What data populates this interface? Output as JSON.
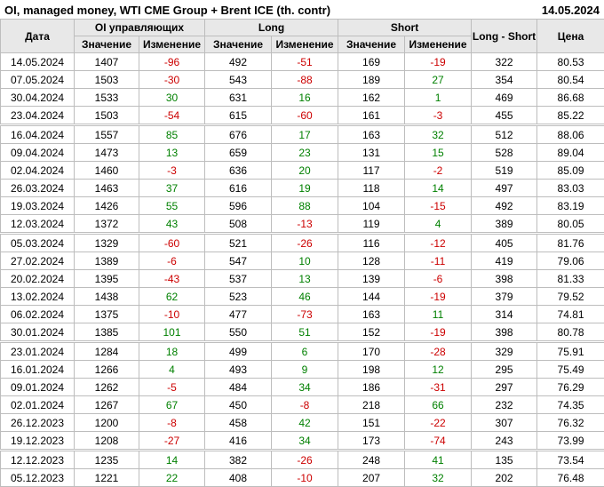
{
  "title": "OI, managed money, WTI CME Group + Brent ICE (th. contr)",
  "report_date": "14.05.2024",
  "colors": {
    "positive_change": "#008000",
    "negative_change": "#cc0000",
    "header_background": "#e8e8e8",
    "grid_border": "#bdbdbd",
    "text": "#000000"
  },
  "table": {
    "headers": {
      "date": "Дата",
      "oi_group": "OI управляющих",
      "long_group": "Long",
      "short_group": "Short",
      "long_short": "Long - Short",
      "price": "Цена",
      "value": "Значение",
      "change": "Изменение"
    },
    "change_columns": [
      2,
      4,
      6
    ],
    "group_separator_rows": [
      4,
      10,
      16,
      22
    ]
  },
  "chart_data": {
    "type": "table",
    "title": "OI, managed money, WTI CME Group + Brent ICE (th. contr)",
    "as_of_date": "14.05.2024",
    "columns": [
      "Дата",
      "OI управляющих Значение",
      "OI управляющих Изменение",
      "Long Значение",
      "Long Изменение",
      "Short Значение",
      "Short Изменение",
      "Long - Short",
      "Цена"
    ],
    "rows": [
      [
        "14.05.2024",
        1407,
        -96,
        492,
        -51,
        169,
        -19,
        322,
        "80.53"
      ],
      [
        "07.05.2024",
        1503,
        -30,
        543,
        -88,
        189,
        27,
        354,
        "80.54"
      ],
      [
        "30.04.2024",
        1533,
        30,
        631,
        16,
        162,
        1,
        469,
        "86.68"
      ],
      [
        "23.04.2024",
        1503,
        -54,
        615,
        -60,
        161,
        -3,
        455,
        "85.22"
      ],
      [
        "16.04.2024",
        1557,
        85,
        676,
        17,
        163,
        32,
        512,
        "88.06"
      ],
      [
        "09.04.2024",
        1473,
        13,
        659,
        23,
        131,
        15,
        528,
        "89.04"
      ],
      [
        "02.04.2024",
        1460,
        -3,
        636,
        20,
        117,
        -2,
        519,
        "85.09"
      ],
      [
        "26.03.2024",
        1463,
        37,
        616,
        19,
        118,
        14,
        497,
        "83.03"
      ],
      [
        "19.03.2024",
        1426,
        55,
        596,
        88,
        104,
        -15,
        492,
        "83.19"
      ],
      [
        "12.03.2024",
        1372,
        43,
        508,
        -13,
        119,
        4,
        389,
        "80.05"
      ],
      [
        "05.03.2024",
        1329,
        -60,
        521,
        -26,
        116,
        -12,
        405,
        "81.76"
      ],
      [
        "27.02.2024",
        1389,
        -6,
        547,
        10,
        128,
        -11,
        419,
        "79.06"
      ],
      [
        "20.02.2024",
        1395,
        -43,
        537,
        13,
        139,
        -6,
        398,
        "81.33"
      ],
      [
        "13.02.2024",
        1438,
        62,
        523,
        46,
        144,
        -19,
        379,
        "79.52"
      ],
      [
        "06.02.2024",
        1375,
        -10,
        477,
        -73,
        163,
        11,
        314,
        "74.81"
      ],
      [
        "30.01.2024",
        1385,
        101,
        550,
        51,
        152,
        -19,
        398,
        "80.78"
      ],
      [
        "23.01.2024",
        1284,
        18,
        499,
        6,
        170,
        -28,
        329,
        "75.91"
      ],
      [
        "16.01.2024",
        1266,
        4,
        493,
        9,
        198,
        12,
        295,
        "75.49"
      ],
      [
        "09.01.2024",
        1262,
        -5,
        484,
        34,
        186,
        -31,
        297,
        "76.29"
      ],
      [
        "02.01.2024",
        1267,
        67,
        450,
        -8,
        218,
        66,
        232,
        "74.35"
      ],
      [
        "26.12.2023",
        1200,
        -8,
        458,
        42,
        151,
        -22,
        307,
        "76.32"
      ],
      [
        "19.12.2023",
        1208,
        -27,
        416,
        34,
        173,
        -74,
        243,
        "73.99"
      ],
      [
        "12.12.2023",
        1235,
        14,
        382,
        -26,
        248,
        41,
        135,
        "73.54"
      ],
      [
        "05.12.2023",
        1221,
        22,
        408,
        -10,
        207,
        32,
        202,
        "76.48"
      ]
    ]
  }
}
